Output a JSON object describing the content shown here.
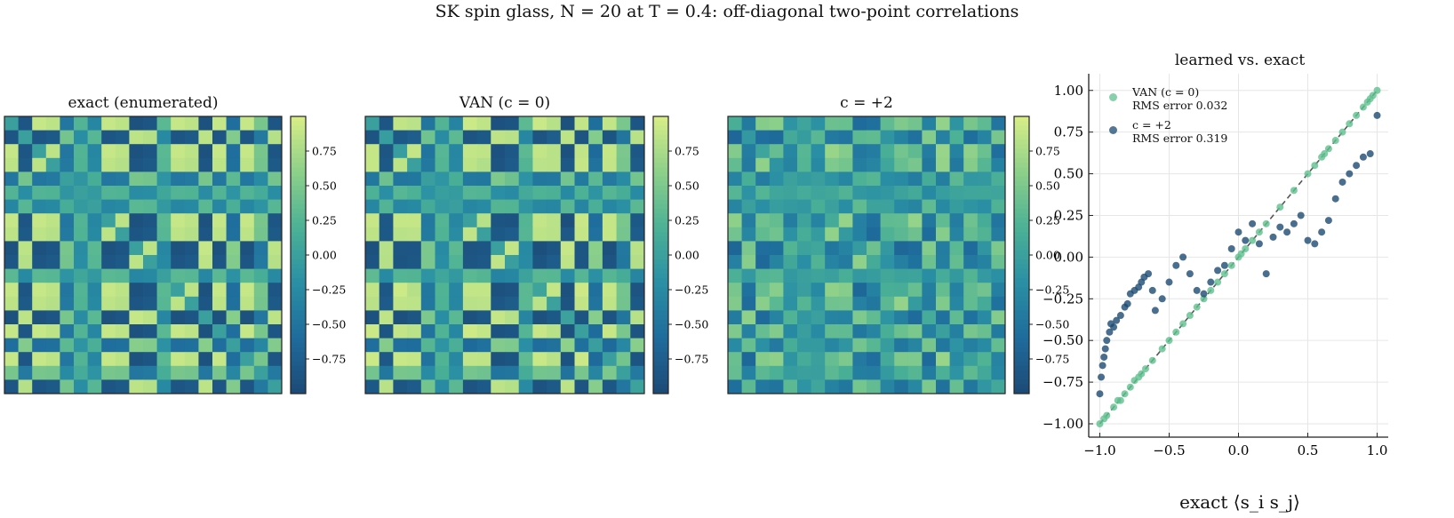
{
  "title": "SK spin glass, N = 20 at T = 0.4: off-diagonal two-point correlations",
  "panels": {
    "exact_title": "exact (enumerated)",
    "van_title": "VAN (c = 0)",
    "c2_title": "c = +2",
    "scatter_title": "learned vs. exact"
  },
  "legend": {
    "van_label": "VAN (c = 0)",
    "van_rms": "RMS error 0.032",
    "c2_label": "c = +2",
    "c2_rms": "RMS error 0.319"
  },
  "colors": {
    "van": "#5fc08f",
    "c2": "#1b4a72",
    "diag_line": "#555555",
    "colormap": [
      "#d9ee86",
      "#8dd08a",
      "#4cb195",
      "#2a8fa4",
      "#1e6b9c",
      "#1d4a76"
    ]
  },
  "chart_data": [
    {
      "type": "heatmap",
      "title": "exact (enumerated)",
      "rows": 20,
      "cols": 20,
      "vlim": [
        -1,
        1
      ],
      "colorbar_ticks": [
        0.75,
        0.5,
        0.25,
        0.0,
        -0.25,
        -0.5,
        -0.75
      ],
      "colorbar_tick_labels": [
        "0.75",
        "0.50",
        "0.25",
        "0.00",
        "−0.25",
        "−0.50",
        "−0.75"
      ]
    },
    {
      "type": "heatmap",
      "title": "VAN (c = 0)",
      "rows": 20,
      "cols": 20,
      "vlim": [
        -1,
        1
      ],
      "colorbar_ticks": [
        0.75,
        0.5,
        0.25,
        0.0,
        -0.25,
        -0.5,
        -0.75
      ],
      "colorbar_tick_labels": [
        "0.75",
        "0.50",
        "0.25",
        "0.00",
        "−0.25",
        "−0.50",
        "−0.75"
      ]
    },
    {
      "type": "heatmap",
      "title": "c = +2",
      "rows": 20,
      "cols": 20,
      "vlim": [
        -1,
        1
      ],
      "colorbar_ticks": [
        0.75,
        0.5,
        0.25,
        0.0,
        -0.25,
        -0.5,
        -0.75
      ],
      "colorbar_tick_labels": [
        "0.75",
        "0.50",
        "0.25",
        "0.00",
        "−0.25",
        "−0.50",
        "−0.75"
      ]
    },
    {
      "type": "scatter",
      "title": "learned vs. exact",
      "xlabel": "exact ⟨s_i s_j⟩",
      "ylabel": "",
      "xlim": [
        -1.08,
        1.08
      ],
      "ylim": [
        -1.08,
        1.1
      ],
      "xticks": [
        -1.0,
        -0.5,
        0.0,
        0.5,
        1.0
      ],
      "xtick_labels": [
        "−1.0",
        "−0.5",
        "0.0",
        "0.5",
        "1.0"
      ],
      "yticks": [
        -1.0,
        -0.75,
        -0.5,
        -0.25,
        0.0,
        0.25,
        0.5,
        0.75,
        1.0
      ],
      "ytick_labels": [
        "−1.00",
        "−0.75",
        "−0.50",
        "−0.25",
        "0.00",
        "0.25",
        "0.50",
        "0.75",
        "1.00"
      ],
      "grid": true,
      "legend_position": "top-left",
      "reference_line": {
        "x": [
          -1,
          1
        ],
        "y": [
          -1,
          1
        ],
        "style": "dashed"
      },
      "series": [
        {
          "name": "VAN (c = 0)",
          "x": [
            -1.0,
            -0.97,
            -0.95,
            -0.9,
            -0.87,
            -0.85,
            -0.82,
            -0.78,
            -0.75,
            -0.72,
            -0.7,
            -0.67,
            -0.62,
            -0.55,
            -0.5,
            -0.45,
            -0.4,
            -0.35,
            -0.3,
            -0.25,
            -0.2,
            -0.15,
            -0.1,
            -0.05,
            0.0,
            0.02,
            0.05,
            0.1,
            0.15,
            0.2,
            0.3,
            0.4,
            0.5,
            0.55,
            0.6,
            0.62,
            0.65,
            0.7,
            0.75,
            0.8,
            0.85,
            0.9,
            0.93,
            0.95,
            0.97,
            1.0
          ],
          "y": [
            -1.0,
            -0.97,
            -0.95,
            -0.9,
            -0.86,
            -0.86,
            -0.82,
            -0.78,
            -0.74,
            -0.72,
            -0.7,
            -0.67,
            -0.62,
            -0.55,
            -0.5,
            -0.45,
            -0.4,
            -0.35,
            -0.3,
            -0.25,
            -0.2,
            -0.15,
            -0.1,
            -0.05,
            0.0,
            0.02,
            0.05,
            0.1,
            0.15,
            0.2,
            0.3,
            0.4,
            0.5,
            0.55,
            0.6,
            0.62,
            0.65,
            0.7,
            0.75,
            0.8,
            0.85,
            0.9,
            0.93,
            0.95,
            0.97,
            1.0
          ]
        },
        {
          "name": "c = +2",
          "x": [
            -1.0,
            -0.99,
            -0.98,
            -0.97,
            -0.96,
            -0.95,
            -0.93,
            -0.92,
            -0.9,
            -0.88,
            -0.85,
            -0.82,
            -0.8,
            -0.78,
            -0.75,
            -0.72,
            -0.7,
            -0.68,
            -0.65,
            -0.62,
            -0.6,
            -0.55,
            -0.5,
            -0.45,
            -0.4,
            -0.35,
            -0.3,
            -0.25,
            -0.2,
            -0.15,
            -0.1,
            -0.05,
            0.0,
            0.05,
            0.1,
            0.15,
            0.2,
            0.25,
            0.3,
            0.35,
            0.4,
            0.45,
            0.5,
            0.55,
            0.6,
            0.65,
            0.7,
            0.75,
            0.8,
            0.85,
            0.9,
            0.95,
            1.0
          ],
          "y": [
            -0.82,
            -0.72,
            -0.65,
            -0.6,
            -0.55,
            -0.5,
            -0.45,
            -0.4,
            -0.42,
            -0.38,
            -0.35,
            -0.3,
            -0.28,
            -0.22,
            -0.2,
            -0.18,
            -0.15,
            -0.12,
            -0.1,
            -0.2,
            -0.32,
            -0.25,
            -0.15,
            -0.05,
            0.0,
            -0.1,
            -0.2,
            -0.22,
            -0.15,
            -0.08,
            -0.05,
            0.05,
            0.15,
            0.1,
            0.2,
            0.08,
            -0.1,
            0.12,
            0.18,
            0.15,
            0.2,
            0.25,
            0.1,
            0.08,
            0.15,
            0.22,
            0.35,
            0.45,
            0.5,
            0.55,
            0.6,
            0.62,
            0.85
          ]
        }
      ]
    }
  ]
}
